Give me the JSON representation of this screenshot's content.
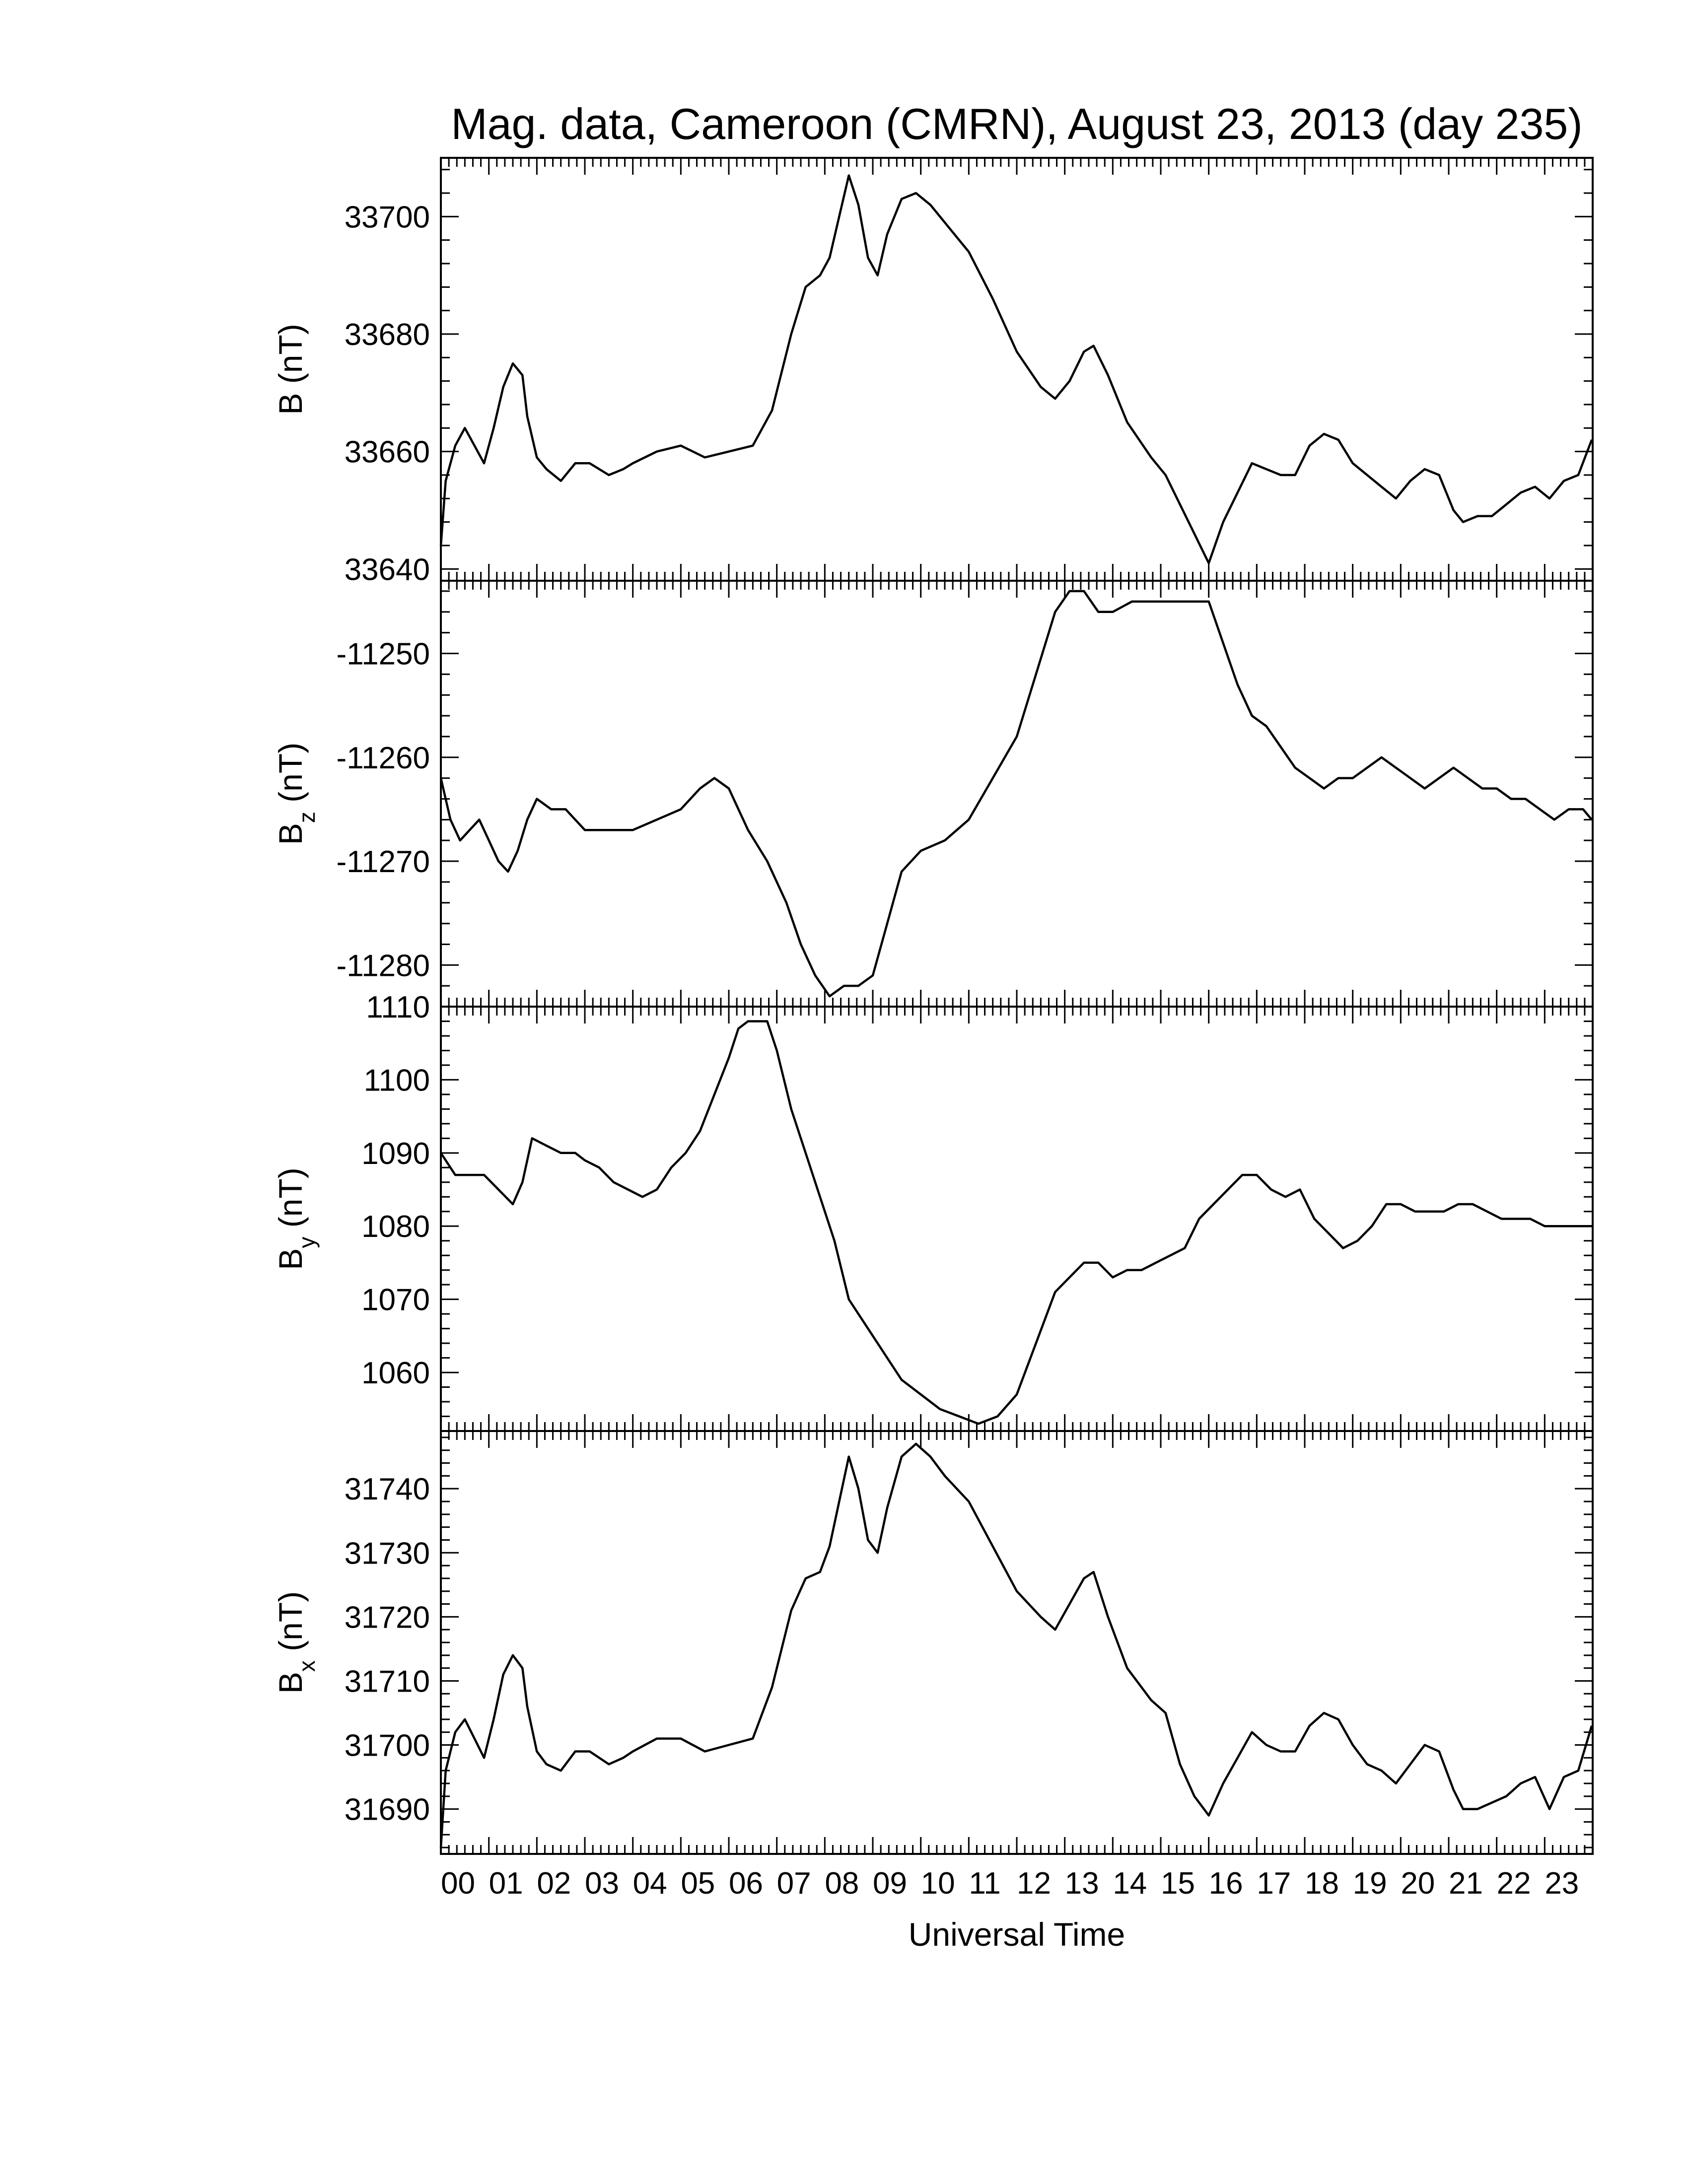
{
  "title": "Mag. data, Cameroon (CMRN), August 23, 2013 (day 235)",
  "chart_data": [
    {
      "type": "line",
      "panel": "B",
      "ylabel": "B (nT)",
      "ylabel_main": "B",
      "ylabel_sub": "",
      "ylabel_unit": "(nT)",
      "ylim": [
        33638,
        33710
      ],
      "yticks": [
        33640,
        33660,
        33680,
        33700
      ],
      "x": [
        0,
        0.1,
        0.3,
        0.5,
        0.7,
        0.9,
        1.1,
        1.3,
        1.5,
        1.7,
        1.8,
        2.0,
        2.2,
        2.5,
        2.8,
        3.1,
        3.5,
        3.8,
        4.0,
        4.5,
        5.0,
        5.5,
        6.0,
        6.5,
        6.9,
        7.3,
        7.6,
        7.9,
        8.1,
        8.3,
        8.5,
        8.7,
        8.9,
        9.1,
        9.3,
        9.6,
        9.9,
        10.2,
        10.5,
        11.0,
        11.5,
        12.0,
        12.5,
        12.8,
        13.1,
        13.4,
        13.6,
        13.9,
        14.3,
        14.8,
        15.1,
        15.4,
        15.7,
        16.0,
        16.3,
        16.6,
        16.9,
        17.2,
        17.5,
        17.8,
        18.1,
        18.4,
        18.7,
        19.0,
        19.3,
        19.6,
        19.9,
        20.2,
        20.5,
        20.8,
        21.1,
        21.3,
        21.6,
        21.9,
        22.2,
        22.5,
        22.8,
        23.1,
        23.4,
        23.7,
        23.98
      ],
      "y": [
        33644,
        33655,
        33661,
        33664,
        33661,
        33658,
        33664,
        33671,
        33675,
        33673,
        33666,
        33659,
        33657,
        33655,
        33658,
        33658,
        33656,
        33657,
        33658,
        33660,
        33661,
        33659,
        33660,
        33661,
        33667,
        33680,
        33688,
        33690,
        33693,
        33700,
        33707,
        33702,
        33693,
        33690,
        33697,
        33703,
        33704,
        33702,
        33699,
        33694,
        33686,
        33677,
        33671,
        33669,
        33672,
        33677,
        33678,
        33673,
        33665,
        33659,
        33656,
        33651,
        33646,
        33641,
        33648,
        33653,
        33658,
        33657,
        33656,
        33656,
        33661,
        33663,
        33662,
        33658,
        33656,
        33654,
        33652,
        33655,
        33657,
        33656,
        33650,
        33648,
        33649,
        33649,
        33651,
        33653,
        33654,
        33652,
        33655,
        33656,
        33662
      ]
    },
    {
      "type": "line",
      "panel": "Bz",
      "ylabel": "Bz (nT)",
      "ylabel_main": "B",
      "ylabel_sub": "z",
      "ylabel_unit": "(nT)",
      "ylim": [
        -11284,
        -11243
      ],
      "yticks": [
        -11280,
        -11270,
        -11260,
        -11250
      ],
      "x": [
        0,
        0.2,
        0.4,
        0.6,
        0.8,
        1.0,
        1.2,
        1.4,
        1.6,
        1.8,
        2.0,
        2.3,
        2.6,
        3.0,
        3.5,
        4.0,
        4.5,
        5.0,
        5.4,
        5.7,
        6.0,
        6.4,
        6.8,
        7.2,
        7.5,
        7.8,
        8.1,
        8.4,
        8.7,
        9.0,
        9.3,
        9.6,
        10.0,
        10.5,
        11.0,
        11.5,
        12.0,
        12.4,
        12.8,
        13.1,
        13.4,
        13.7,
        14.0,
        14.4,
        14.8,
        15.2,
        15.6,
        16.0,
        16.3,
        16.6,
        16.9,
        17.2,
        17.5,
        17.8,
        18.1,
        18.4,
        18.7,
        19.0,
        19.3,
        19.6,
        19.9,
        20.2,
        20.5,
        20.8,
        21.1,
        21.4,
        21.7,
        22.0,
        22.3,
        22.6,
        22.9,
        23.2,
        23.5,
        23.8,
        23.98
      ],
      "y": [
        -11262,
        -11266,
        -11268,
        -11267,
        -11266,
        -11268,
        -11270,
        -11271,
        -11269,
        -11266,
        -11264,
        -11265,
        -11265,
        -11267,
        -11267,
        -11267,
        -11266,
        -11265,
        -11263,
        -11262,
        -11263,
        -11267,
        -11270,
        -11274,
        -11278,
        -11281,
        -11283,
        -11282,
        -11282,
        -11281,
        -11276,
        -11271,
        -11269,
        -11268,
        -11266,
        -11262,
        -11258,
        -11252,
        -11246,
        -11244,
        -11244,
        -11246,
        -11246,
        -11245,
        -11245,
        -11245,
        -11245,
        -11245,
        -11249,
        -11253,
        -11256,
        -11257,
        -11259,
        -11261,
        -11262,
        -11263,
        -11262,
        -11262,
        -11261,
        -11260,
        -11261,
        -11262,
        -11263,
        -11262,
        -11261,
        -11262,
        -11263,
        -11263,
        -11264,
        -11264,
        -11265,
        -11266,
        -11265,
        -11265,
        -11266
      ]
    },
    {
      "type": "line",
      "panel": "By",
      "ylabel": "By (nT)",
      "ylabel_main": "B",
      "ylabel_sub": "y",
      "ylabel_unit": "(nT)",
      "ylim": [
        1052,
        1110
      ],
      "yticks": [
        1060,
        1070,
        1080,
        1090,
        1100,
        1110
      ],
      "x": [
        0,
        0.3,
        0.6,
        0.9,
        1.2,
        1.5,
        1.7,
        1.9,
        2.2,
        2.5,
        2.8,
        3.0,
        3.3,
        3.6,
        3.9,
        4.2,
        4.5,
        4.8,
        5.1,
        5.4,
        5.7,
        6.0,
        6.2,
        6.4,
        6.6,
        6.8,
        7.0,
        7.3,
        7.6,
        7.9,
        8.2,
        8.5,
        8.8,
        9.2,
        9.6,
        10.0,
        10.4,
        10.8,
        11.2,
        11.6,
        12.0,
        12.4,
        12.8,
        13.1,
        13.4,
        13.7,
        14.0,
        14.3,
        14.6,
        14.9,
        15.2,
        15.5,
        15.8,
        16.1,
        16.4,
        16.7,
        17.0,
        17.3,
        17.6,
        17.9,
        18.2,
        18.5,
        18.8,
        19.1,
        19.4,
        19.7,
        20.0,
        20.3,
        20.6,
        20.9,
        21.2,
        21.5,
        21.8,
        22.1,
        22.4,
        22.7,
        23.0,
        23.3,
        23.6,
        23.98
      ],
      "y": [
        1090,
        1087,
        1087,
        1087,
        1085,
        1083,
        1086,
        1092,
        1091,
        1090,
        1090,
        1089,
        1088,
        1086,
        1085,
        1084,
        1085,
        1088,
        1090,
        1093,
        1098,
        1103,
        1107,
        1108,
        1108,
        1108,
        1104,
        1096,
        1090,
        1084,
        1078,
        1070,
        1067,
        1063,
        1059,
        1057,
        1055,
        1054,
        1053,
        1054,
        1057,
        1064,
        1071,
        1073,
        1075,
        1075,
        1073,
        1074,
        1074,
        1075,
        1076,
        1077,
        1081,
        1083,
        1085,
        1087,
        1087,
        1085,
        1084,
        1085,
        1081,
        1079,
        1077,
        1078,
        1080,
        1083,
        1083,
        1082,
        1082,
        1082,
        1083,
        1083,
        1082,
        1081,
        1081,
        1081,
        1080,
        1080,
        1080,
        1080
      ]
    },
    {
      "type": "line",
      "panel": "Bx",
      "ylabel": "Bx (nT)",
      "ylabel_main": "B",
      "ylabel_sub": "x",
      "ylabel_unit": "(nT)",
      "ylim": [
        31683,
        31749
      ],
      "yticks": [
        31690,
        31700,
        31710,
        31720,
        31730,
        31740
      ],
      "x": [
        0,
        0.1,
        0.3,
        0.5,
        0.7,
        0.9,
        1.1,
        1.3,
        1.5,
        1.7,
        1.8,
        2.0,
        2.2,
        2.5,
        2.8,
        3.1,
        3.5,
        3.8,
        4.0,
        4.5,
        5.0,
        5.5,
        6.0,
        6.5,
        6.9,
        7.3,
        7.6,
        7.9,
        8.1,
        8.3,
        8.5,
        8.7,
        8.9,
        9.1,
        9.3,
        9.6,
        9.9,
        10.2,
        10.5,
        11.0,
        11.5,
        12.0,
        12.5,
        12.8,
        13.1,
        13.4,
        13.6,
        13.9,
        14.3,
        14.8,
        15.1,
        15.4,
        15.7,
        16.0,
        16.3,
        16.6,
        16.9,
        17.2,
        17.5,
        17.8,
        18.1,
        18.4,
        18.7,
        19.0,
        19.3,
        19.6,
        19.9,
        20.2,
        20.5,
        20.8,
        21.1,
        21.3,
        21.6,
        21.9,
        22.2,
        22.5,
        22.8,
        23.1,
        23.4,
        23.7,
        23.98
      ],
      "y": [
        31684,
        31696,
        31702,
        31704,
        31701,
        31698,
        31704,
        31711,
        31714,
        31712,
        31706,
        31699,
        31697,
        31696,
        31699,
        31699,
        31697,
        31698,
        31699,
        31701,
        31701,
        31699,
        31700,
        31701,
        31709,
        31721,
        31726,
        31727,
        31731,
        31738,
        31745,
        31740,
        31732,
        31730,
        31737,
        31745,
        31747,
        31745,
        31742,
        31738,
        31731,
        31724,
        31720,
        31718,
        31722,
        31726,
        31727,
        31720,
        31712,
        31707,
        31705,
        31697,
        31692,
        31689,
        31694,
        31698,
        31702,
        31700,
        31699,
        31699,
        31703,
        31705,
        31704,
        31700,
        31697,
        31696,
        31694,
        31697,
        31700,
        31699,
        31693,
        31690,
        31690,
        31691,
        31692,
        31694,
        31695,
        31690,
        31695,
        31696,
        31703
      ]
    }
  ],
  "x_axis": {
    "label": "Universal Time",
    "range": [
      0,
      24
    ],
    "tick_labels": [
      "00",
      "01",
      "02",
      "03",
      "04",
      "05",
      "06",
      "07",
      "08",
      "09",
      "10",
      "11",
      "12",
      "13",
      "14",
      "15",
      "16",
      "17",
      "18",
      "19",
      "20",
      "21",
      "22",
      "23"
    ]
  }
}
